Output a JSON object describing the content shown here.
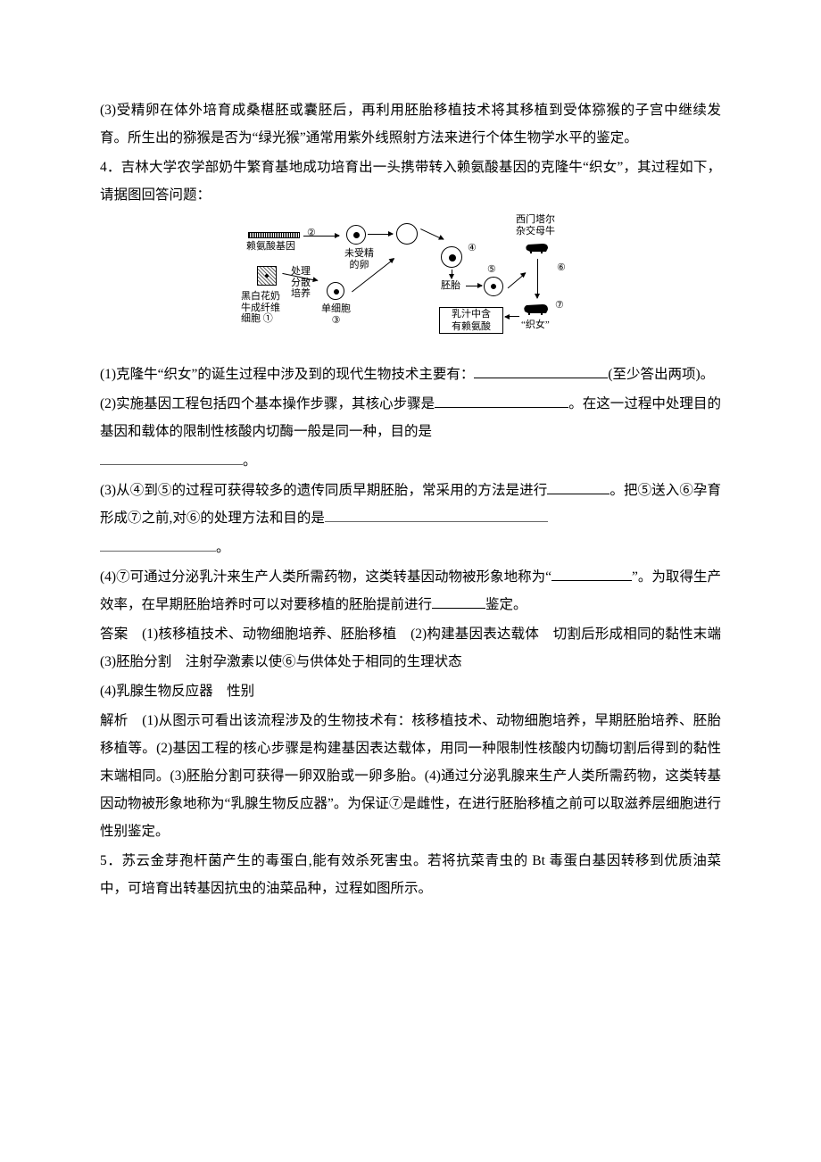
{
  "p3_3": "(3)受精卵在体外培育成桑椹胚或囊胚后，再利用胚胎移植技术将其移植到受体猕猴的子宫中继续发育。所生出的猕猴是否为“绿光猴”通常用紫外线照射方法来进行个体生物学水平的鉴定。",
  "q4_intro": "4．吉林大学农学部奶牛繁育基地成功培育出一头携带转入赖氨酸基因的克隆牛“织女”，其过程如下，请据图回答问题：",
  "diagram": {
    "gene": "赖氨酸基因",
    "fibroblast": "黑白花奶\n牛成纤维\n细胞 ①",
    "num2": "②",
    "process": "处理\n分散\n培养",
    "single_cell": "单细胞\n③",
    "unfertilized": "未受精\n的卵",
    "num4": "④",
    "embryo": "胚胎",
    "num5": "⑤",
    "num6": "⑥",
    "cow_type": "西门塔尔\n杂交母牛",
    "milk": "乳汁中含\n有赖氨酸",
    "zhinu": "“织女”",
    "num7": "⑦"
  },
  "q4_1a": "(1)克隆牛“织女”的诞生过程中涉及到的现代生物技术主要有：",
  "q4_1b": "(至少答出两项)。",
  "q4_2a": "(2)实施基因工程包括四个基本操作步骤，其核心步骤是",
  "q4_2b": "。在这一过程中处理目的基因和载体的限制性核酸内切酶一般是同一种，目的是",
  "q4_2c": "。",
  "q4_3a": "(3)从④到⑤的过程可获得较多的遗传同质早期胚胎，常采用的方法是进行",
  "q4_3b": "。把⑤送入⑥孕育形成⑦之前,对⑥的处理方法和目的是",
  "q4_3c": "。",
  "q4_4a": "(4)⑦可通过分泌乳汁来生产人类所需药物，这类转基因动物被形象地称为“",
  "q4_4b": "”。为取得生产效率，在早期胚胎培养时可以对要移植的胚胎提前进行",
  "q4_4c": "鉴定。",
  "ans4": "答案　(1)核移植技术、动物细胞培养、胚胎移植　(2)构建基因表达载体　切割后形成相同的黏性末端　(3)胚胎分割　注射孕激素以使⑥与供体处于相同的生理状态",
  "ans4_4": "(4)乳腺生物反应器　性别",
  "exp4": "解析　(1)从图示可看出该流程涉及的生物技术有：核移植技术、动物细胞培养，早期胚胎培养、胚胎移植等。(2)基因工程的核心步骤是构建基因表达载体，用同一种限制性核酸内切酶切割后得到的黏性末端相同。(3)胚胎分割可获得一卵双胎或一卵多胎。(4)通过分泌乳腺来生产人类所需药物，这类转基因动物被形象地称为“乳腺生物反应器”。为保证⑦是雌性，在进行胚胎移植之前可以取滋养层细胞进行性别鉴定。",
  "q5": "5．苏云金芽孢杆菌产生的毒蛋白,能有效杀死害虫。若将抗菜青虫的 Bt 毒蛋白基因转移到优质油菜中，可培育出转基因抗虫的油菜品种，过程如图所示。"
}
